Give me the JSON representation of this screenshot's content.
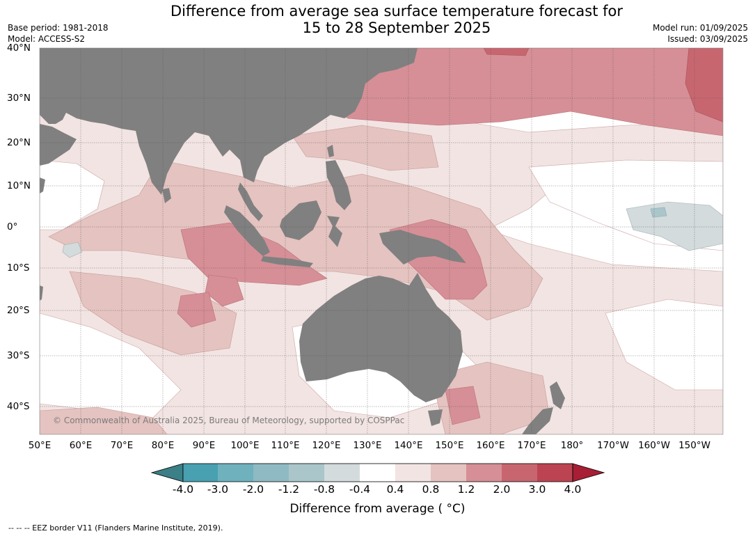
{
  "title_line1": "Difference from average sea surface temperature forecast for",
  "title_line2": "15 to 28 September 2025",
  "base_period": "Base period: 1981-2018",
  "model": "Model: ACCESS-S2",
  "model_run": "Model run: 01/09/2025",
  "issued": "Issued: 03/09/2025",
  "lat_labels": [
    "40°N",
    "30°N",
    "20°N",
    "10°N",
    "0°",
    "10°S",
    "20°S",
    "30°S",
    "40°S"
  ],
  "lon_labels": [
    "50°E",
    "60°E",
    "70°E",
    "80°E",
    "90°E",
    "100°E",
    "110°E",
    "120°E",
    "130°E",
    "140°E",
    "150°E",
    "160°E",
    "170°E",
    "180°",
    "170°W",
    "160°W",
    "150°W"
  ],
  "copyright": "© Commonwealth of Australia 2025, Bureau of Meteorology, supported by COSPPac",
  "colorbar": {
    "ticks": [
      "-4.0",
      "-3.0",
      "-2.0",
      "-1.2",
      "-0.8",
      "-0.4",
      "0.4",
      "0.8",
      "1.2",
      "2.0",
      "3.0",
      "4.0"
    ],
    "colors": [
      "#3b7f87",
      "#48a0b0",
      "#6fb1bd",
      "#8fbac3",
      "#aac6cb",
      "#d3dbdc",
      "#ffffff",
      "#f2e4e2",
      "#e5c3c0",
      "#d68f96",
      "#c86670",
      "#bc4452",
      "#a81e35"
    ],
    "label": "Difference from average ( °C)"
  },
  "colors": {
    "land": "#808080",
    "grid": "#444444"
  },
  "footnote": "--  --  -- EEZ border V11 (Flanders Marine Institute, 2019)."
}
